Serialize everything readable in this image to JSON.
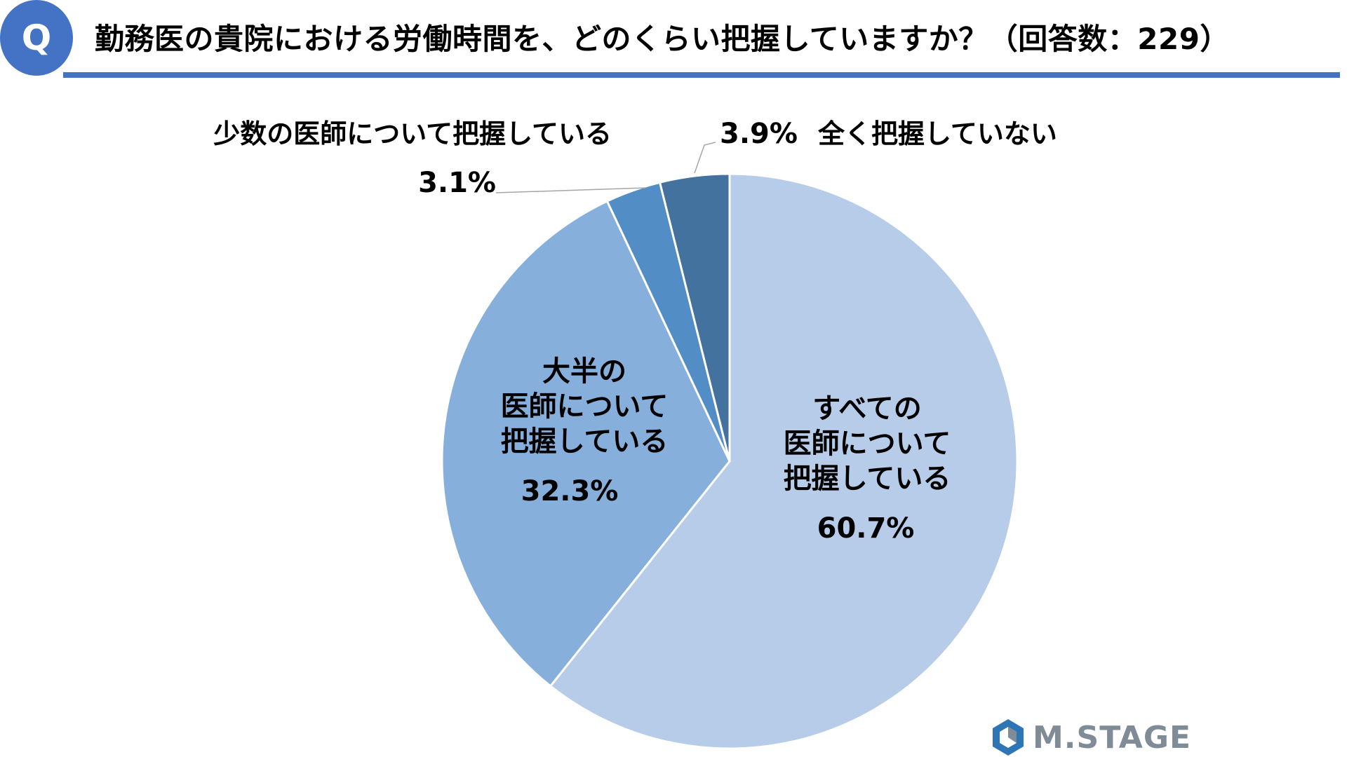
{
  "header": {
    "badge": "Q",
    "title": "勤務医の貴院における労働時間を、どのくらい把握していますか？（回答数：229）"
  },
  "chart_data": {
    "type": "pie",
    "categories": [
      "すべての医師について把握している",
      "大半の医師について把握している",
      "少数の医師について把握している",
      "全く把握していない"
    ],
    "values": [
      60.7,
      32.3,
      3.1,
      3.9
    ],
    "value_labels": [
      "60.7%",
      "32.3%",
      "3.1%",
      "3.9%"
    ],
    "label_lines": [
      [
        "すべての",
        "医師について",
        "把握している"
      ],
      [
        "大半の",
        "医師について",
        "把握している"
      ],
      [
        "少数の医師について把握している"
      ],
      [
        "全く把握していない"
      ]
    ],
    "colors": [
      "#b7cce8",
      "#87afdc",
      "#528dc6",
      "#44729f"
    ],
    "slice_order": "clockwise-from-top",
    "start_slice": 0
  },
  "logo": {
    "text": "M.STAGE",
    "color": "#7f8c97",
    "accent": "#2e75b6"
  }
}
